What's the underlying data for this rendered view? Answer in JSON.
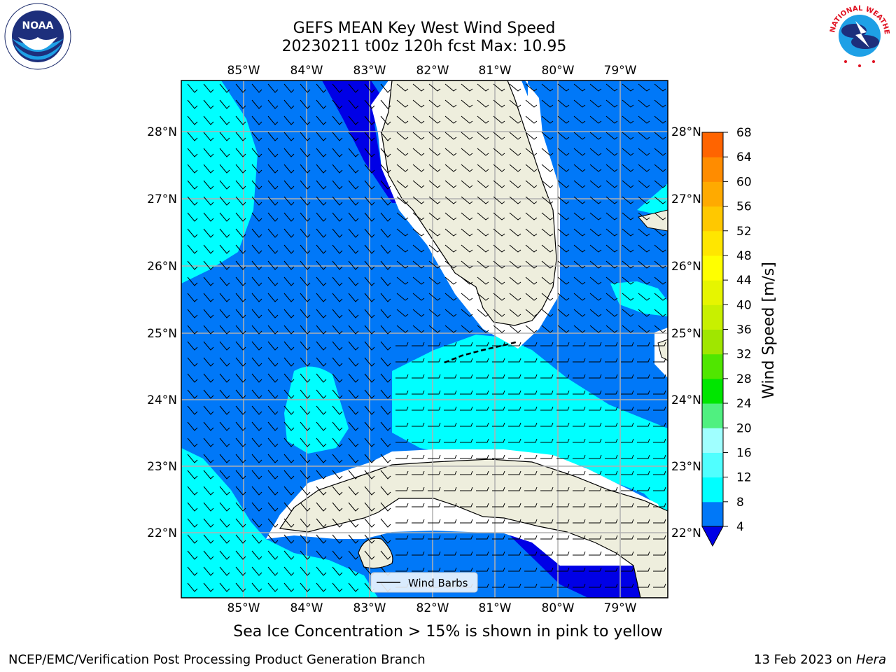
{
  "header": {
    "title_line1": "GEFS MEAN Key West Wind Speed",
    "title_line2": "20230211 t00z 120h fcst   Max: 10.95"
  },
  "logos": {
    "left": {
      "name": "noaa-logo",
      "text": "NOAA"
    },
    "right": {
      "name": "national-weather-service-logo",
      "text": "NATIONAL WEATHER SERVICE"
    }
  },
  "map": {
    "lon_labels": [
      "85°W",
      "84°W",
      "83°W",
      "82°W",
      "81°W",
      "80°W",
      "79°W"
    ],
    "lat_labels": [
      "28°N",
      "27°N",
      "26°N",
      "25°N",
      "24°N",
      "23°N",
      "22°N"
    ],
    "colors": {
      "land": "#eeeedd",
      "dark_blue": "#0000e6",
      "mid_blue": "#0078f8",
      "cyan": "#00ffff",
      "grid": "#b0b0b0"
    },
    "legend": {
      "label": "Wind Barbs"
    }
  },
  "colorbar": {
    "label": "Wind Speed [m/s]",
    "ticks": [
      "4",
      "8",
      "12",
      "16",
      "20",
      "24",
      "28",
      "32",
      "36",
      "40",
      "44",
      "48",
      "52",
      "56",
      "60",
      "64",
      "68"
    ],
    "colors": [
      "#0078f8",
      "#00ffff",
      "#50ffff",
      "#a0ffff",
      "#50f080",
      "#00e600",
      "#50e600",
      "#a0e600",
      "#c8f000",
      "#e6f500",
      "#ffff00",
      "#ffe600",
      "#ffc800",
      "#ffaa00",
      "#ff8c00",
      "#ff6400",
      "#ff4600",
      "#ff0000"
    ],
    "under_color": "#0000e6"
  },
  "footer": {
    "note": "Sea Ice Concentration > 15% is shown in pink to yellow",
    "branch": "NCEP/EMC/Verification Post Processing Product Generation Branch",
    "date": "13 Feb 2023 on",
    "host": "Hera"
  }
}
